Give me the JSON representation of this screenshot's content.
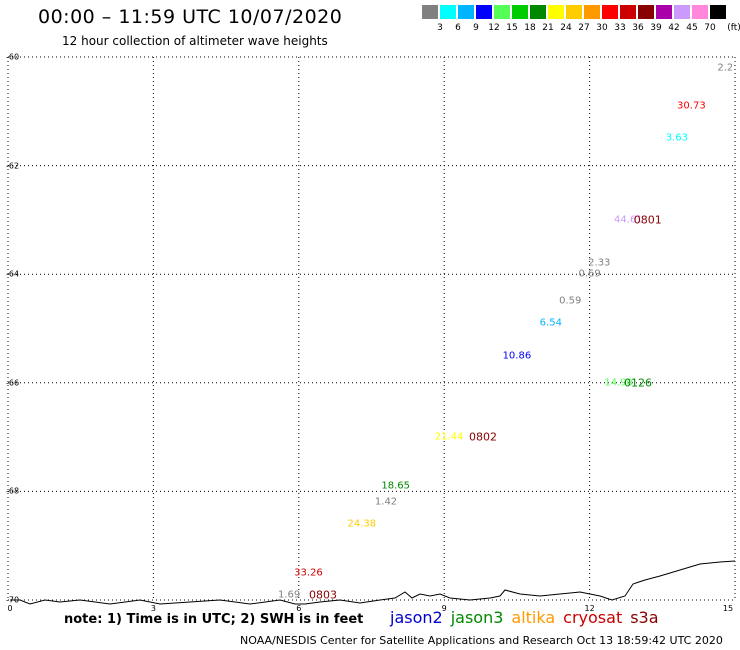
{
  "header": {
    "title": "00:00 – 11:59 UTC 10/07/2020",
    "subtitle": "12 hour collection of altimeter wave heights"
  },
  "color_scale": {
    "unit_label": "(ft)",
    "bins": [
      {
        "label": "3",
        "color": "#808080"
      },
      {
        "label": "6",
        "color": "#00ffff"
      },
      {
        "label": "9",
        "color": "#00b4ff"
      },
      {
        "label": "12",
        "color": "#0000ff"
      },
      {
        "label": "15",
        "color": "#55ff55"
      },
      {
        "label": "18",
        "color": "#00cc00"
      },
      {
        "label": "21",
        "color": "#008800"
      },
      {
        "label": "24",
        "color": "#ffff00"
      },
      {
        "label": "27",
        "color": "#ffcc00"
      },
      {
        "label": "30",
        "color": "#ff9900"
      },
      {
        "label": "33",
        "color": "#ff0000"
      },
      {
        "label": "36",
        "color": "#cc0000"
      },
      {
        "label": "39",
        "color": "#880000"
      },
      {
        "label": "42",
        "color": "#aa00aa"
      },
      {
        "label": "45",
        "color": "#cc99ff"
      },
      {
        "label": "70",
        "color": "#ff88dd"
      },
      {
        "label": "",
        "color": "#000000"
      }
    ]
  },
  "map": {
    "lon_range": [
      0,
      15
    ],
    "lat_range": [
      -70,
      -60
    ],
    "x_ticks": [
      "0",
      "3",
      "6",
      "9",
      "12",
      "15"
    ],
    "y_ticks": [
      "-60",
      "-62",
      "-64",
      "-66",
      "-68",
      "-70"
    ],
    "pass_labels": [
      {
        "text": "0801",
        "lon": 13.2,
        "lat": -63.0,
        "color": "#880000"
      },
      {
        "text": "0126",
        "lon": 13.0,
        "lat": -66.0,
        "color": "#008800"
      },
      {
        "text": "0802",
        "lon": 9.8,
        "lat": -67.0,
        "color": "#880000"
      },
      {
        "text": "0803",
        "lon": 6.5,
        "lat": -69.9,
        "color": "#880000"
      }
    ],
    "swh_labels": [
      {
        "text": "2.2",
        "lon": 14.8,
        "lat": -60.2,
        "color": "#808080"
      },
      {
        "text": "30.73",
        "lon": 14.1,
        "lat": -60.9,
        "color": "#ff0000"
      },
      {
        "text": "3.63",
        "lon": 13.8,
        "lat": -61.5,
        "color": "#00ffff"
      },
      {
        "text": "44.61",
        "lon": 12.8,
        "lat": -63.0,
        "color": "#cc99ff"
      },
      {
        "text": "2.33",
        "lon": 12.2,
        "lat": -63.8,
        "color": "#808080"
      },
      {
        "text": "0.69",
        "lon": 12.0,
        "lat": -64.0,
        "color": "#808080"
      },
      {
        "text": "0.59",
        "lon": 11.6,
        "lat": -64.5,
        "color": "#808080"
      },
      {
        "text": "6.54",
        "lon": 11.2,
        "lat": -64.9,
        "color": "#00b4ff"
      },
      {
        "text": "10.86",
        "lon": 10.5,
        "lat": -65.5,
        "color": "#0000ff"
      },
      {
        "text": "14.90",
        "lon": 12.6,
        "lat": -66.0,
        "color": "#55ff55"
      },
      {
        "text": "21.44",
        "lon": 9.1,
        "lat": -67.0,
        "color": "#ffff00"
      },
      {
        "text": "18.65",
        "lon": 8.0,
        "lat": -67.9,
        "color": "#008800"
      },
      {
        "text": "1.42",
        "lon": 7.8,
        "lat": -68.2,
        "color": "#808080"
      },
      {
        "text": "24.38",
        "lon": 7.3,
        "lat": -68.6,
        "color": "#ffcc00"
      },
      {
        "text": "33.26",
        "lon": 6.2,
        "lat": -69.5,
        "color": "#cc0000"
      },
      {
        "text": "1.69",
        "lon": 5.8,
        "lat": -69.9,
        "color": "#808080"
      }
    ]
  },
  "footer": {
    "note": "note: 1) Time is in UTC; 2) SWH is in feet",
    "satellites": [
      {
        "name": "jason2",
        "color": "#0000cc"
      },
      {
        "name": "jason3",
        "color": "#008800"
      },
      {
        "name": "altika",
        "color": "#ff9900"
      },
      {
        "name": "cryosat",
        "color": "#cc0000"
      },
      {
        "name": "s3a",
        "color": "#880000"
      }
    ],
    "credit": "NOAA/NESDIS Center for Satellite Applications and Research     Oct 13 18:59:42 UTC 2020"
  }
}
